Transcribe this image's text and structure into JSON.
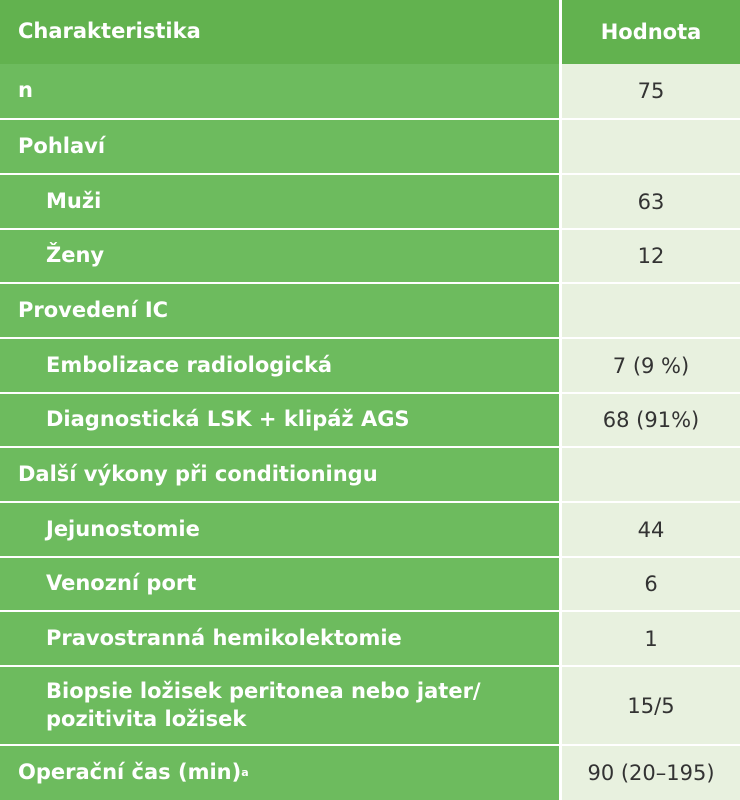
{
  "table": {
    "header": {
      "label": "Charakteristika",
      "value": "Hodnota"
    },
    "rows": [
      {
        "label": "n",
        "value": "75"
      },
      {
        "label": "Pohlaví",
        "value": ""
      },
      {
        "label": "Muži",
        "value": "63"
      },
      {
        "label": "Ženy",
        "value": "12"
      },
      {
        "label": "Provedení IC",
        "value": ""
      },
      {
        "label": "Embolizace radiologická",
        "value": "7 (9 %)"
      },
      {
        "label": "Diagnostická LSK + klipáž AGS",
        "value": "68 (91%)"
      },
      {
        "label": "Další výkony při conditioningu",
        "value": ""
      },
      {
        "label": "Jejunostomie",
        "value": "44"
      },
      {
        "label": "Venozní port",
        "value": "6"
      },
      {
        "label": "Pravostranná hemikolektomie",
        "value": "1"
      },
      {
        "label": "Biopsie ložisek peritonea nebo jater/ pozitivita ložisek",
        "value": "15/5"
      },
      {
        "label": "Operační čas (min)",
        "label_sup": "a",
        "value": "90 (20–195)"
      }
    ]
  },
  "colors": {
    "header_bg": "#62b24f",
    "label_bg": "#6dbb5e",
    "value_bg": "#e8f1df",
    "value_text": "#333333"
  }
}
